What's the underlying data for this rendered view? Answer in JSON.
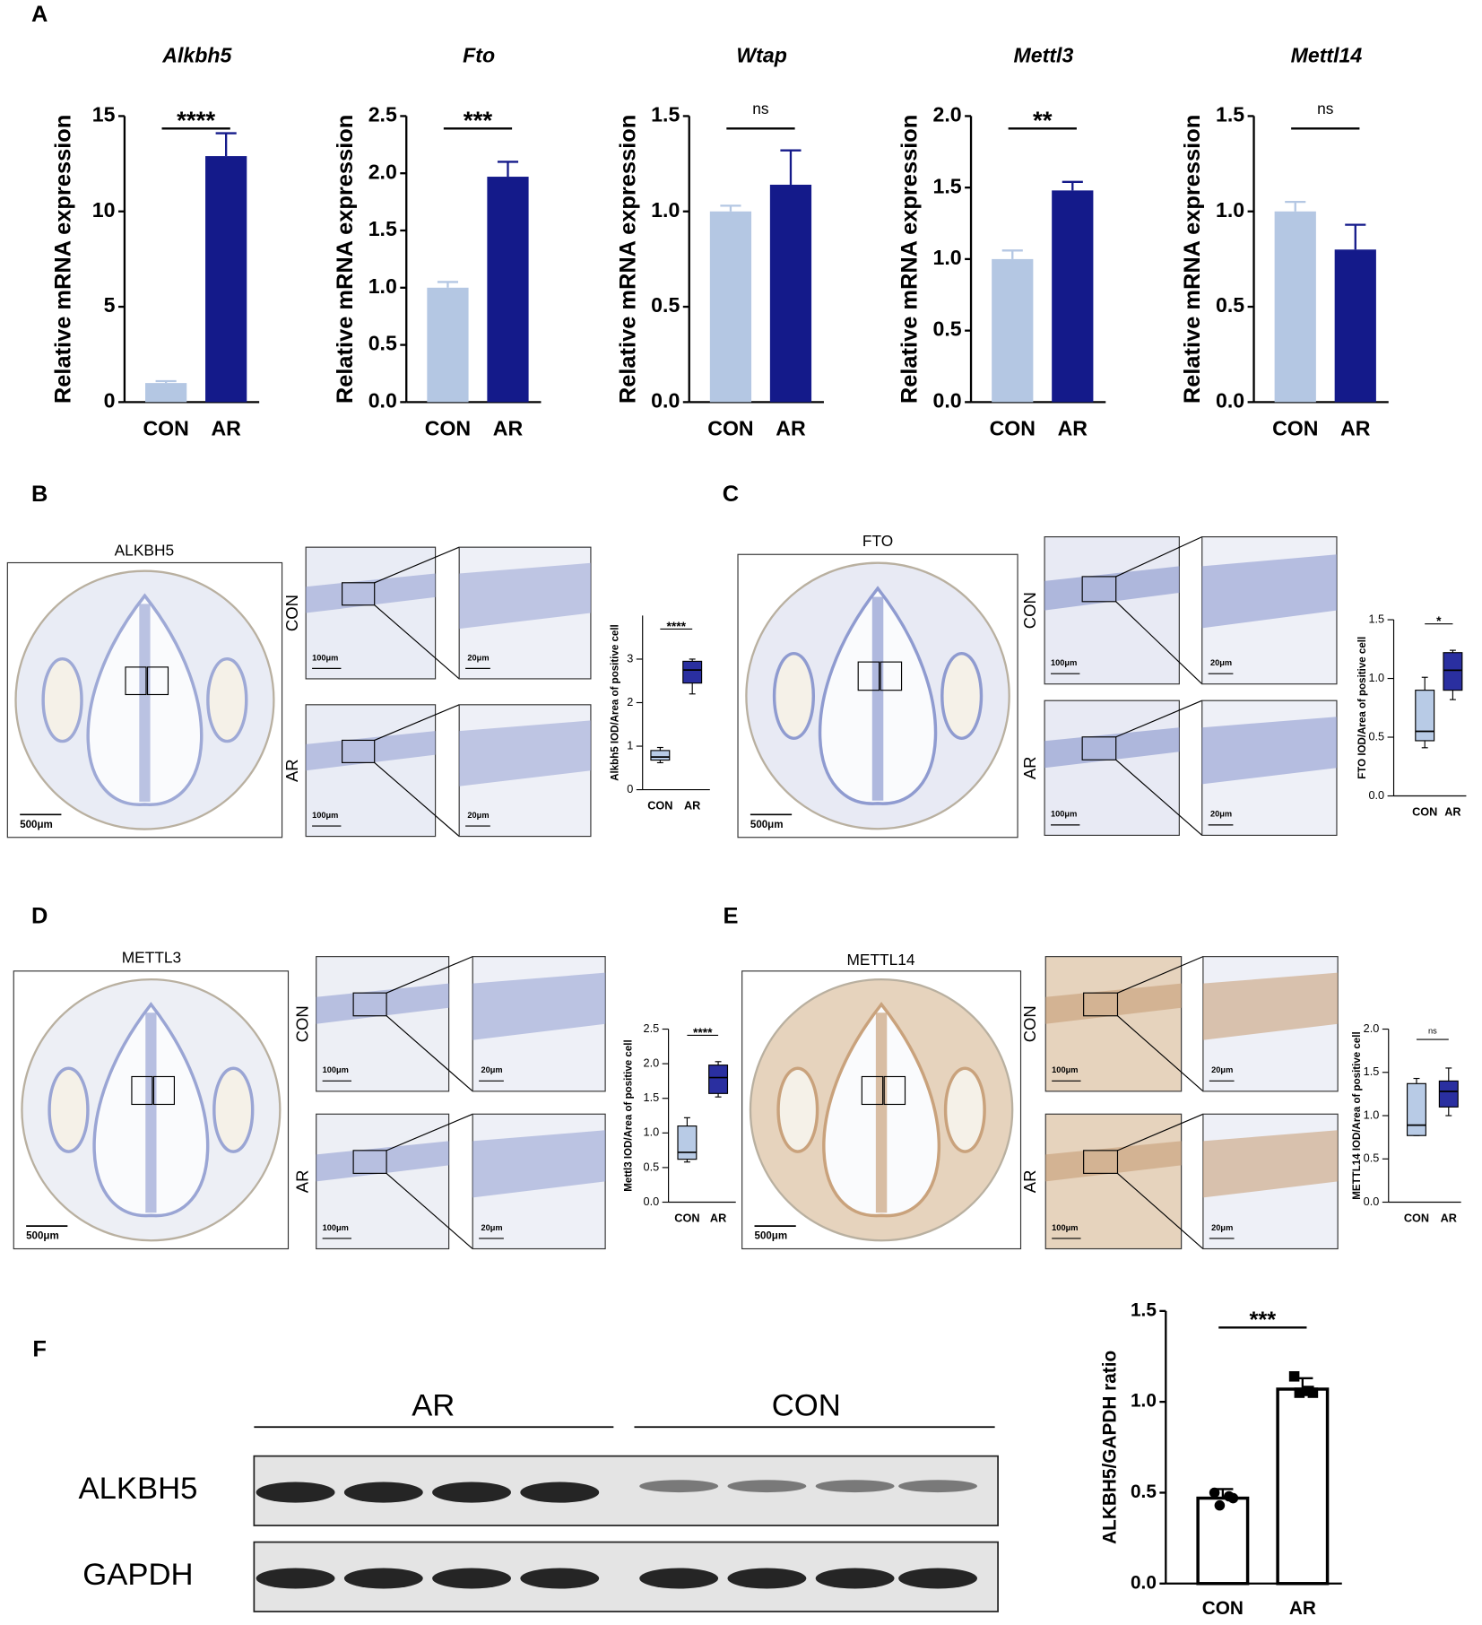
{
  "panel_labels": [
    "A",
    "B",
    "C",
    "D",
    "E",
    "F"
  ],
  "images": [
    {
      "title": "ALKBH5",
      "scale": "500μm",
      "rows": [
        "CON",
        "AR"
      ],
      "mid_scale": "100μm",
      "zoom_scale": "20μm"
    },
    {
      "title": "FTO",
      "scale": "500μm",
      "rows": [
        "CON",
        "AR"
      ],
      "mid_scale": "100μm",
      "zoom_scale": "20μm"
    },
    {
      "title": "METTL3",
      "scale": "500μm",
      "rows": [
        "CON",
        "AR"
      ],
      "mid_scale": "100μm",
      "zoom_scale": "20μm"
    },
    {
      "title": "METTL14",
      "scale": "500μm",
      "rows": [
        "CON",
        "AR"
      ],
      "mid_scale": "100μm",
      "zoom_scale": "20μm"
    }
  ],
  "blot": {
    "groups": [
      "AR",
      "CON"
    ],
    "rows": [
      "ALKBH5",
      "GAPDH"
    ]
  },
  "chart_data": [
    {
      "type": "bar",
      "title": "Alkbh5",
      "ylabel": "Relative mRNA expression",
      "categories": [
        "CON",
        "AR"
      ],
      "values": [
        1.0,
        12.9
      ],
      "errors": [
        0.1,
        1.2
      ],
      "colors": [
        "#b4c7e3",
        "#141a8a"
      ],
      "significance": "****",
      "ylim": [
        0,
        15
      ],
      "yticks": [
        0,
        5,
        10,
        15
      ]
    },
    {
      "type": "bar",
      "title": "Fto",
      "ylabel": "Relative mRNA expression",
      "categories": [
        "CON",
        "AR"
      ],
      "values": [
        1.0,
        1.97
      ],
      "errors": [
        0.05,
        0.13
      ],
      "colors": [
        "#b4c7e3",
        "#141a8a"
      ],
      "significance": "***",
      "ylim": [
        0,
        2.5
      ],
      "yticks": [
        {
          "value": 0,
          "label": "0.0"
        },
        0.5,
        {
          "value": 1,
          "label": "1.0"
        },
        1.5,
        {
          "value": 2,
          "label": "2.0"
        },
        2.5
      ]
    },
    {
      "type": "bar",
      "title": "Wtap",
      "ylabel": "Relative mRNA expression",
      "categories": [
        "CON",
        "AR"
      ],
      "values": [
        1.0,
        1.14
      ],
      "errors": [
        0.03,
        0.18
      ],
      "colors": [
        "#b4c7e3",
        "#141a8a"
      ],
      "significance": "ns",
      "ylim": [
        0,
        1.5
      ],
      "yticks": [
        {
          "value": 0,
          "label": "0.0"
        },
        0.5,
        {
          "value": 1,
          "label": "1.0"
        },
        1.5
      ]
    },
    {
      "type": "bar",
      "title": "Mettl3",
      "ylabel": "Relative mRNA expression",
      "categories": [
        "CON",
        "AR"
      ],
      "values": [
        1.0,
        1.48
      ],
      "errors": [
        0.06,
        0.06
      ],
      "colors": [
        "#b4c7e3",
        "#141a8a"
      ],
      "significance": "**",
      "ylim": [
        0,
        2
      ],
      "yticks": [
        {
          "value": 0,
          "label": "0.0"
        },
        0.5,
        {
          "value": 1,
          "label": "1.0"
        },
        1.5,
        {
          "value": 2,
          "label": "2.0"
        }
      ]
    },
    {
      "type": "bar",
      "title": "Mettl14",
      "ylabel": "Relative mRNA expression",
      "categories": [
        "CON",
        "AR"
      ],
      "values": [
        1.0,
        0.8
      ],
      "errors": [
        0.05,
        0.13
      ],
      "colors": [
        "#b4c7e3",
        "#141a8a"
      ],
      "significance": "ns",
      "ylim": [
        0,
        1.5
      ],
      "yticks": [
        {
          "value": 0,
          "label": "0.0"
        },
        0.5,
        {
          "value": 1,
          "label": "1.0"
        },
        1.5
      ]
    },
    {
      "type": "box",
      "ylabel": "Alkbh5 IOD/Area of positive cell",
      "categories": [
        "CON",
        "AR"
      ],
      "stats": [
        {
          "min": 0.62,
          "q1": 0.68,
          "median": 0.75,
          "q3": 0.9,
          "max": 0.97
        },
        {
          "min": 2.2,
          "q1": 2.45,
          "median": 2.75,
          "q3": 2.95,
          "max": 3.0
        }
      ],
      "colors": [
        "#b8cbe6",
        "#2a2fa0"
      ],
      "significance": "****",
      "ylim": [
        0,
        4
      ],
      "yticks": [
        0,
        1,
        2,
        3
      ]
    },
    {
      "type": "box",
      "ylabel": "FTO IOD/Area of positive cell",
      "categories": [
        "CON",
        "AR"
      ],
      "stats": [
        {
          "min": 0.41,
          "q1": 0.47,
          "median": 0.55,
          "q3": 0.9,
          "max": 1.01
        },
        {
          "min": 0.82,
          "q1": 0.9,
          "median": 1.07,
          "q3": 1.22,
          "max": 1.24
        }
      ],
      "colors": [
        "#b8cbe6",
        "#2a2fa0"
      ],
      "significance": "*",
      "ylim": [
        0,
        1.5
      ],
      "yticks": [
        {
          "value": 0,
          "label": "0.0"
        },
        0.5,
        {
          "value": 1,
          "label": "1.0"
        },
        1.5
      ]
    },
    {
      "type": "box",
      "ylabel": "Mettl3 IOD/Area of positive cell",
      "categories": [
        "CON",
        "AR"
      ],
      "stats": [
        {
          "min": 0.58,
          "q1": 0.62,
          "median": 0.72,
          "q3": 1.1,
          "max": 1.22
        },
        {
          "min": 1.52,
          "q1": 1.57,
          "median": 1.8,
          "q3": 1.98,
          "max": 2.03
        }
      ],
      "colors": [
        "#b8cbe6",
        "#2a2fa0"
      ],
      "significance": "****",
      "ylim": [
        0,
        2.5
      ],
      "yticks": [
        {
          "value": 0,
          "label": "0.0"
        },
        0.5,
        {
          "value": 1,
          "label": "1.0"
        },
        1.5,
        {
          "value": 2,
          "label": "2.0"
        },
        2.5
      ]
    },
    {
      "type": "box",
      "ylabel": "METTL14 IOD/Area of positive cell",
      "categories": [
        "CON",
        "AR"
      ],
      "stats": [
        {
          "min": 0.77,
          "q1": 0.77,
          "median": 0.89,
          "q3": 1.37,
          "max": 1.43
        },
        {
          "min": 1.0,
          "q1": 1.1,
          "median": 1.28,
          "q3": 1.4,
          "max": 1.55
        }
      ],
      "colors": [
        "#b8cbe6",
        "#2a2fa0"
      ],
      "significance": "ns",
      "ylim": [
        0,
        2
      ],
      "yticks": [
        {
          "value": 0,
          "label": "0.0"
        },
        0.5,
        {
          "value": 1,
          "label": "1.0"
        },
        1.5,
        {
          "value": 2,
          "label": "2.0"
        }
      ]
    },
    {
      "type": "bar",
      "ylabel": "ALKBH5/GAPDH ratio",
      "categories": [
        "CON",
        "AR"
      ],
      "values": [
        0.47,
        1.07
      ],
      "errors": [
        0.05,
        0.06
      ],
      "points": [
        [
          0.5,
          0.48,
          0.43,
          0.47
        ],
        [
          1.14,
          1.06,
          1.05,
          1.05
        ]
      ],
      "colors": [
        "#ffffff",
        "#ffffff"
      ],
      "point_color": "#000000",
      "significance": "***",
      "ylim": [
        0,
        1.5
      ],
      "yticks": [
        {
          "value": 0,
          "label": "0.0"
        },
        0.5,
        {
          "value": 1,
          "label": "1.0"
        },
        1.5
      ]
    }
  ]
}
